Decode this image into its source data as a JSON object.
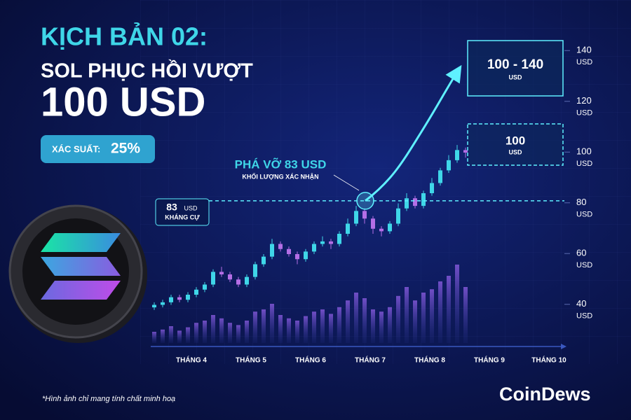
{
  "header": {
    "title": "KỊCH BẢN 02:",
    "subtitle": "SOL PHỤC HỒI VƯỢT",
    "headline": "100 USD",
    "probability_label": "XÁC SUẤT:",
    "probability": "25%"
  },
  "chart_data": {
    "type": "candlestick",
    "categories": [
      "THÁNG 4",
      "THÁNG 5",
      "THÁNG 6",
      "THÁNG 7",
      "THÁNG 8",
      "THÁNG 9",
      "THÁNG 10"
    ],
    "open": [
      41,
      42,
      43,
      45,
      44,
      46,
      48,
      50,
      55,
      54,
      52,
      50,
      53,
      58,
      61,
      66,
      64,
      62,
      60,
      63,
      66,
      67,
      66,
      70,
      74,
      79,
      76,
      72,
      71,
      74,
      80,
      84,
      81,
      86,
      90,
      95,
      99,
      103
    ],
    "high": [
      43,
      44,
      46,
      46,
      47,
      49,
      51,
      56,
      57,
      55,
      53,
      54,
      59,
      62,
      68,
      67,
      65,
      63,
      64,
      67,
      69,
      68,
      71,
      76,
      81,
      80,
      77,
      73,
      75,
      82,
      86,
      85,
      87,
      92,
      96,
      101,
      105,
      104
    ],
    "low": [
      40,
      41,
      42,
      43,
      43,
      45,
      47,
      49,
      53,
      51,
      49,
      49,
      52,
      57,
      60,
      63,
      61,
      58,
      59,
      62,
      65,
      64,
      65,
      69,
      73,
      74,
      70,
      69,
      70,
      73,
      79,
      80,
      80,
      85,
      89,
      94,
      98,
      100
    ],
    "close": [
      42,
      43,
      45,
      44,
      46,
      48,
      50,
      55,
      54,
      52,
      50,
      53,
      58,
      61,
      66,
      64,
      62,
      60,
      63,
      66,
      67,
      66,
      70,
      74,
      79,
      76,
      72,
      71,
      74,
      80,
      84,
      81,
      86,
      90,
      95,
      99,
      103,
      102
    ],
    "volume": [
      10,
      12,
      15,
      11,
      14,
      18,
      20,
      25,
      22,
      18,
      16,
      20,
      28,
      30,
      35,
      25,
      22,
      20,
      24,
      28,
      30,
      26,
      32,
      38,
      45,
      40,
      30,
      28,
      32,
      42,
      50,
      38,
      45,
      48,
      55,
      60,
      70,
      50
    ],
    "up_color": "#3fd6e8",
    "down_color": "#b46ee6",
    "ylim": [
      30,
      150
    ],
    "yticks": [
      40,
      60,
      80,
      100,
      120,
      140
    ],
    "y_unit": "USD",
    "breakout": {
      "level": 83,
      "title": "PHÁ VỠ 83 USD",
      "note": "KHỐI LƯỢNG XÁC NHẬN",
      "unit": "USD",
      "label": "KHÁNG CỰ"
    },
    "targets": [
      {
        "label": "100 - 140",
        "unit": "USD"
      },
      {
        "label": "100",
        "unit": "USD"
      }
    ]
  },
  "footnote": "*Hình ảnh chỉ mang tính chất minh hoạ",
  "logo": "CoinDews"
}
